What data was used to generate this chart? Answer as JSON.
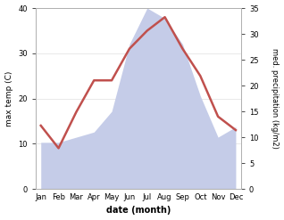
{
  "months": [
    "Jan",
    "Feb",
    "Mar",
    "Apr",
    "May",
    "Jun",
    "Jul",
    "Aug",
    "Sep",
    "Oct",
    "Nov",
    "Dec"
  ],
  "temp": [
    14,
    9,
    17,
    24,
    24,
    31,
    35,
    38,
    31,
    25,
    16,
    13
  ],
  "precip": [
    9,
    9,
    10,
    11,
    15,
    28,
    35,
    33,
    28,
    18,
    10,
    12
  ],
  "temp_color": "#c0504d",
  "precip_fill": "#c5cce8",
  "temp_ylim": [
    0,
    40
  ],
  "precip_ylim": [
    0,
    35
  ],
  "xlabel": "date (month)",
  "ylabel_left": "max temp (C)",
  "ylabel_right": "med. precipitation (kg/m2)",
  "bg_color": "#ffffff",
  "spine_color": "#b0b0b0",
  "temp_lw": 1.8
}
